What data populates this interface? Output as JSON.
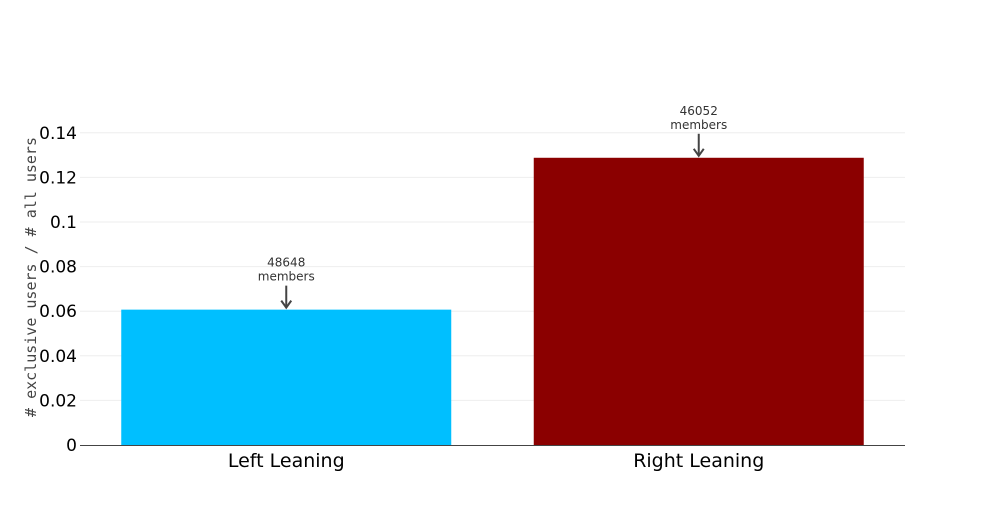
{
  "chart_data": {
    "type": "bar",
    "title": "",
    "xlabel": "",
    "ylabel": "# exclusive users / # all users",
    "categories": [
      "Left Leaning",
      "Right Leaning"
    ],
    "values": [
      0.0607,
      0.1288
    ],
    "bar_colors": [
      "#00bfff",
      "#8b0000"
    ],
    "ylim": [
      0,
      0.15
    ],
    "yticks": [
      0,
      0.02,
      0.04,
      0.06,
      0.08,
      0.1,
      0.12,
      0.14
    ],
    "ytick_labels": [
      "0",
      "0.02",
      "0.04",
      "0.06",
      "0.08",
      "0.1",
      "0.12",
      "0.14"
    ],
    "grid": true,
    "annotations": [
      {
        "category": "Left Leaning",
        "count": "48648",
        "unit": "members"
      },
      {
        "category": "Right Leaning",
        "count": "46052",
        "unit": "members"
      }
    ]
  }
}
